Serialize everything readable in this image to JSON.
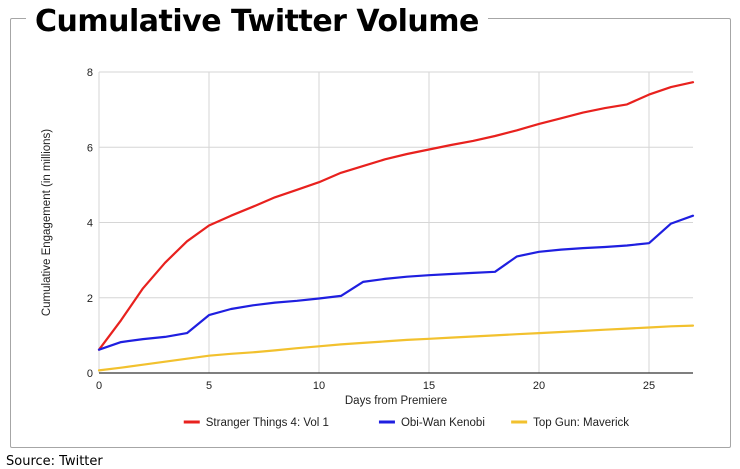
{
  "title": "Cumulative Twitter Volume",
  "source": "Source: Twitter",
  "chart_data": {
    "type": "line",
    "title": "Cumulative Twitter Volume",
    "xlabel": "Days from Premiere",
    "ylabel": "Cumulative Engagement (in millions)",
    "xlim": [
      0,
      27
    ],
    "ylim": [
      0,
      8
    ],
    "xticks": [
      0,
      5,
      10,
      15,
      20,
      25
    ],
    "yticks": [
      0,
      2,
      4,
      6,
      8
    ],
    "grid": true,
    "legend_position": "bottom",
    "x": [
      0,
      1,
      2,
      3,
      4,
      5,
      6,
      7,
      8,
      9,
      10,
      11,
      12,
      13,
      14,
      15,
      16,
      17,
      18,
      19,
      20,
      21,
      22,
      23,
      24,
      25,
      26,
      27
    ],
    "series": [
      {
        "name": "Stranger Things 4: Vol 1",
        "color": "#e8211e",
        "values": [
          0.62,
          1.4,
          2.25,
          2.93,
          3.5,
          3.92,
          4.18,
          4.42,
          4.67,
          4.87,
          5.07,
          5.32,
          5.5,
          5.68,
          5.82,
          5.94,
          6.06,
          6.17,
          6.3,
          6.45,
          6.62,
          6.77,
          6.92,
          7.04,
          7.14,
          7.4,
          7.6,
          7.73
        ]
      },
      {
        "name": "Obi-Wan Kenobi",
        "color": "#1f1fe0",
        "values": [
          0.62,
          0.82,
          0.9,
          0.96,
          1.06,
          1.54,
          1.7,
          1.8,
          1.87,
          1.92,
          1.98,
          2.05,
          2.42,
          2.5,
          2.56,
          2.6,
          2.63,
          2.66,
          2.69,
          3.1,
          3.22,
          3.28,
          3.32,
          3.35,
          3.39,
          3.45,
          3.97,
          4.18
        ]
      },
      {
        "name": "Top Gun: Maverick",
        "color": "#f2c12e",
        "values": [
          0.07,
          0.14,
          0.22,
          0.3,
          0.38,
          0.46,
          0.51,
          0.55,
          0.6,
          0.66,
          0.71,
          0.76,
          0.8,
          0.84,
          0.88,
          0.91,
          0.94,
          0.97,
          1.0,
          1.03,
          1.06,
          1.09,
          1.12,
          1.15,
          1.18,
          1.21,
          1.24,
          1.26
        ]
      }
    ]
  }
}
